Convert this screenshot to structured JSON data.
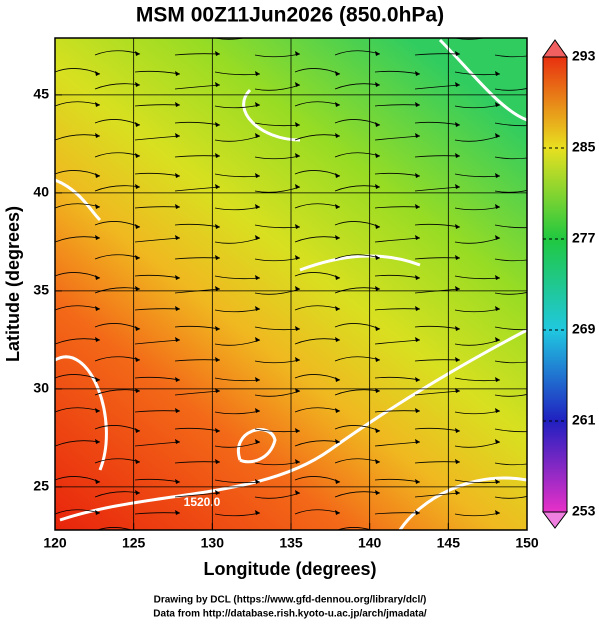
{
  "chart_data": {
    "type": "map",
    "title": "MSM 00Z11Jun2026 (850.0hPa)",
    "x_label": "Longitude (degrees)",
    "y_label": "Latitude  (degrees)",
    "xlim": [
      120,
      150
    ],
    "xticks": [
      120,
      125,
      130,
      135,
      140,
      145,
      150
    ],
    "ylim": [
      22.8,
      47.9
    ],
    "yticks": [
      25,
      30,
      35,
      40,
      45
    ],
    "grid": true,
    "colorbar": {
      "lim": [
        253,
        293
      ],
      "ticks": [
        253,
        261,
        269,
        277,
        285,
        293
      ]
    },
    "annotations": [
      "1520.0"
    ],
    "footer": [
      "Drawing by DCL (https://www.gfd-dennou.org/library/dcl/)",
      "Data from http://database.rish.kyoto-u.ac.jp/arch/jmadata/"
    ]
  }
}
